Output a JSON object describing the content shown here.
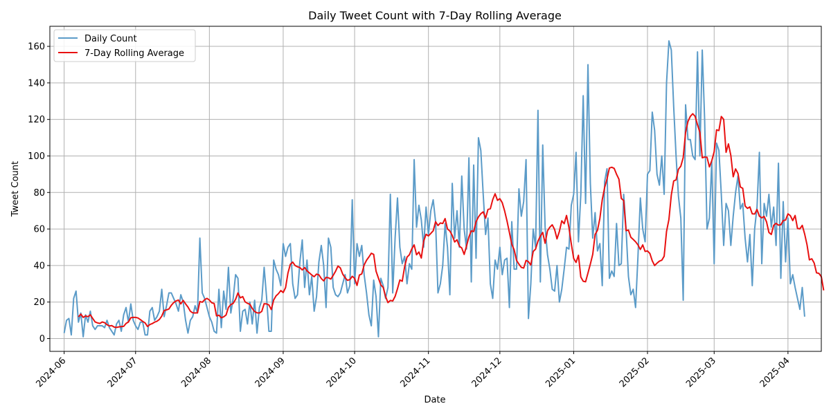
{
  "chart_data": {
    "type": "line",
    "title": "Daily Tweet Count with 7-Day Rolling Average",
    "xlabel": "Date",
    "ylabel": "Tweet Count",
    "x_range": [
      "2024-05-26",
      "2025-04-15"
    ],
    "ylim": [
      -7,
      171
    ],
    "y_ticks": [
      0,
      20,
      40,
      60,
      80,
      100,
      120,
      140,
      160
    ],
    "x_ticks": [
      "2024-06",
      "2024-07",
      "2024-08",
      "2024-09",
      "2024-10",
      "2024-11",
      "2024-12",
      "2025-01",
      "2025-02",
      "2025-03",
      "2025-04"
    ],
    "x_tick_dates": [
      "2024-06-01",
      "2024-07-01",
      "2024-08-01",
      "2024-09-01",
      "2024-10-01",
      "2024-11-01",
      "2024-12-01",
      "2025-01-01",
      "2025-02-01",
      "2025-03-01",
      "2025-04-01"
    ],
    "grid": true,
    "legend": "top-left",
    "start_date": "2024-06-01",
    "series": [
      {
        "name": "Daily Count",
        "color": "#5b9bc8",
        "values": [
          3,
          10,
          11,
          2,
          22,
          26,
          9,
          14,
          1,
          13,
          9,
          15,
          7,
          5,
          7,
          7,
          7,
          6,
          10,
          6,
          4,
          2,
          8,
          10,
          4,
          13,
          17,
          9,
          19,
          10,
          7,
          5,
          9,
          9,
          2,
          2,
          15,
          17,
          10,
          12,
          15,
          27,
          12,
          18,
          25,
          25,
          22,
          19,
          15,
          24,
          20,
          10,
          3,
          10,
          12,
          18,
          14,
          55,
          25,
          22,
          17,
          12,
          9,
          4,
          3,
          27,
          6,
          26,
          16,
          39,
          14,
          22,
          35,
          33,
          4,
          15,
          16,
          8,
          20,
          8,
          21,
          3,
          17,
          21,
          39,
          23,
          4,
          4,
          43,
          38,
          35,
          29,
          52,
          45,
          50,
          52,
          30,
          22,
          24,
          42,
          54,
          28,
          43,
          24,
          34,
          15,
          23,
          42,
          51,
          40,
          17,
          55,
          50,
          28,
          24,
          23,
          25,
          30,
          35,
          25,
          29,
          76,
          30,
          52,
          45,
          51,
          35,
          25,
          13,
          7,
          32,
          23,
          1,
          33,
          29,
          22,
          28,
          79,
          25,
          55,
          77,
          50,
          41,
          45,
          30,
          41,
          38,
          98,
          61,
          73,
          65,
          50,
          72,
          57,
          70,
          76,
          64,
          25,
          30,
          40,
          63,
          50,
          24,
          85,
          55,
          70,
          50,
          89,
          60,
          49,
          99,
          31,
          95,
          44,
          110,
          103,
          79,
          57,
          66,
          30,
          22,
          43,
          38,
          50,
          35,
          43,
          44,
          17,
          64,
          38,
          38,
          82,
          67,
          75,
          98,
          11,
          30,
          60,
          50,
          125,
          31,
          106,
          61,
          46,
          38,
          27,
          26,
          40,
          20,
          27,
          38,
          50,
          49,
          73,
          79,
          102,
          53,
          79,
          133,
          74,
          150,
          85,
          55,
          69,
          48,
          52,
          29,
          86,
          93,
          33,
          37,
          34,
          63,
          40,
          41,
          79,
          60,
          34,
          24,
          27,
          17,
          45,
          77,
          60,
          53,
          90,
          92,
          124,
          114,
          90,
          84,
          100,
          79,
          140,
          163,
          158,
          127,
          100,
          78,
          66,
          21,
          128,
          109,
          109,
          100,
          98,
          157,
          100,
          158,
          120,
          60,
          66,
          97,
          41,
          107,
          103,
          79,
          51,
          74,
          70,
          51,
          67,
          80,
          89,
          71,
          74,
          55,
          42,
          57,
          29,
          60,
          72,
          102,
          41,
          74,
          67,
          79,
          61,
          72,
          51,
          96,
          33,
          75,
          42,
          66,
          30,
          35,
          28,
          22,
          16,
          28,
          12
        ]
      },
      {
        "name": "7-Day Rolling Average",
        "color": "#e81010",
        "values": [
          null,
          null,
          null,
          null,
          null,
          null,
          11.9,
          13.4,
          11.6,
          12.4,
          12.0,
          13.0,
          11.0,
          9.1,
          8.6,
          8.3,
          9.1,
          8.7,
          7.6,
          6.9,
          7.1,
          6.3,
          6.1,
          6.4,
          6.6,
          6.7,
          8.3,
          9.1,
          11.4,
          11.6,
          11.6,
          11.3,
          10.4,
          9.4,
          8.6,
          6.6,
          7.7,
          8.2,
          9.0,
          9.5,
          10.5,
          12.3,
          15.4,
          15.7,
          16.2,
          18.2,
          19.7,
          20.6,
          21.1,
          19.0,
          20.9,
          19.0,
          17.3,
          15.0,
          14.1,
          14.0,
          14.1,
          20.3,
          19.9,
          21.3,
          22.0,
          21.1,
          19.6,
          19.2,
          12.4,
          12.8,
          11.4,
          11.9,
          12.9,
          17.1,
          18.6,
          19.3,
          21.5,
          25.0,
          22.3,
          23.0,
          20.1,
          19.3,
          18.8,
          16.5,
          14.8,
          14.1,
          14.0,
          14.9,
          19.1,
          19.0,
          18.4,
          15.9,
          21.1,
          23.4,
          24.6,
          26.3,
          25.2,
          27.9,
          35.9,
          40.7,
          41.9,
          40.0,
          39.3,
          38.9,
          37.6,
          38.9,
          37.1,
          36.0,
          34.8,
          33.9,
          35.3,
          34.9,
          32.9,
          31.6,
          33.5,
          33.3,
          32.6,
          34.6,
          36.9,
          39.7,
          38.7,
          35.3,
          33.3,
          31.9,
          32.3,
          34.1,
          33.0,
          29.1,
          34.8,
          35.4,
          40.3,
          42.9,
          44.7,
          46.7,
          46.1,
          36.9,
          33.1,
          29.4,
          28.0,
          23.0,
          19.7,
          20.9,
          20.6,
          23.1,
          27.3,
          32.1,
          31.4,
          39.4,
          44.6,
          45.9,
          49.1,
          51.3,
          45.9,
          47.4,
          44.1,
          53.4,
          57.1,
          56.2,
          57.6,
          59.0,
          64.0,
          61.9,
          63.3,
          63.0,
          65.7,
          60.0,
          58.9,
          56.5,
          52.9,
          54.1,
          50.6,
          49.6,
          46.1,
          50.7,
          55.7,
          59.0,
          58.6,
          64.0,
          66.6,
          68.4,
          69.4,
          65.9,
          70.7,
          71.1,
          76.1,
          79.3,
          75.7,
          76.6,
          74.4,
          69.9,
          64.4,
          58.1,
          51.7,
          48.6,
          42.8,
          40.8,
          39.0,
          38.6,
          42.8,
          42.1,
          40.3,
          47.7,
          49.0,
          53.4,
          56.1,
          58.1,
          52.2,
          59.0,
          61.0,
          62.3,
          59.7,
          54.6,
          58.7,
          64.5,
          62.9,
          67.4,
          60.9,
          51.9,
          43.9,
          41.7,
          45.6,
          33.7,
          31.4,
          31.1,
          35.9,
          40.8,
          46.1,
          57.0,
          59.3,
          65.8,
          76.0,
          82.7,
          87.4,
          93.4,
          93.8,
          93.2,
          90.0,
          87.3,
          76.7,
          75.6,
          59.1,
          59.4,
          55.5,
          54.3,
          53.0,
          51.3,
          48.8,
          51.3,
          47.7,
          48.0,
          46.6,
          42.6,
          40.0,
          41.3,
          42.4,
          42.9,
          45.1,
          58.7,
          65.2,
          78.6,
          86.3,
          86.9,
          92.7,
          94.4,
          99.1,
          112.9,
          118.9,
          121.7,
          123.1,
          121.7,
          117.1,
          113.0,
          99.0,
          99.4,
          99.3,
          94.0,
          97.4,
          102.3,
          114.3,
          113.9,
          121.6,
          120.0,
          102.0,
          106.6,
          100.3,
          88.6,
          92.9,
          90.4,
          83.0,
          82.3,
          72.6,
          71.3,
          72.1,
          68.3,
          68.2,
          70.7,
          67.0,
          66.1,
          66.9,
          63.9,
          58.1,
          57.0,
          62.0,
          63.1,
          62.1,
          62.3,
          64.6,
          64.9,
          68.3,
          67.3,
          64.6,
          67.4,
          60.3,
          60.1,
          62.0,
          57.3,
          51.4,
          43.1,
          43.7,
          41.4,
          36.0,
          35.7,
          33.9,
          26.4
        ]
      }
    ]
  }
}
